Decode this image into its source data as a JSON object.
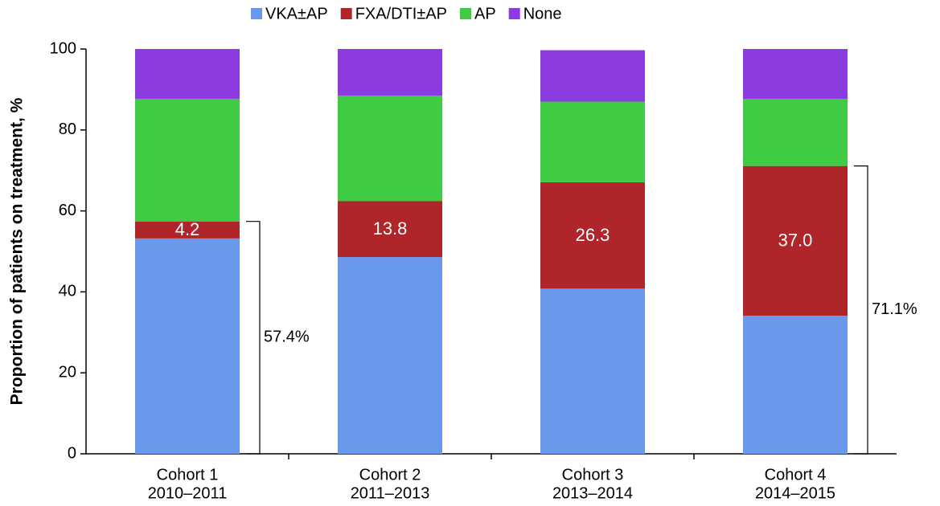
{
  "chart_data": {
    "type": "stacked_bar",
    "y_label": "Proportion of patients on treatment, %",
    "categories": [
      [
        "Cohort 1",
        "2010–2011"
      ],
      [
        "Cohort 2",
        "2011–2013"
      ],
      [
        "Cohort 3",
        "2013–2014"
      ],
      [
        "Cohort 4",
        "2014–2015"
      ]
    ],
    "series": [
      {
        "name": "VKA±AP",
        "color": "#6a98ea",
        "values": [
          53.2,
          48.6,
          40.8,
          34.1
        ]
      },
      {
        "name": "FXA/DTI±AP",
        "color": "#b0252a",
        "values": [
          4.2,
          13.8,
          26.3,
          37.0
        ],
        "value_labels": [
          "4.2",
          "13.8",
          "26.3",
          "37.0"
        ]
      },
      {
        "name": "AP",
        "color": "#3fcb44",
        "values": [
          30.3,
          26.1,
          19.9,
          16.6
        ]
      },
      {
        "name": "None",
        "color": "#8b3be0",
        "values": [
          12.3,
          11.5,
          12.7,
          12.3
        ]
      }
    ],
    "annotations": [
      {
        "category": "Cohort 1",
        "value": 57.4,
        "label": "57.4%"
      },
      {
        "category": "Cohort 4",
        "value": 71.1,
        "label": "71.1%"
      }
    ],
    "ylim": [
      0,
      100
    ],
    "yticks": [
      0,
      20,
      40,
      60,
      80,
      100
    ],
    "grid": false,
    "legend": "top"
  }
}
